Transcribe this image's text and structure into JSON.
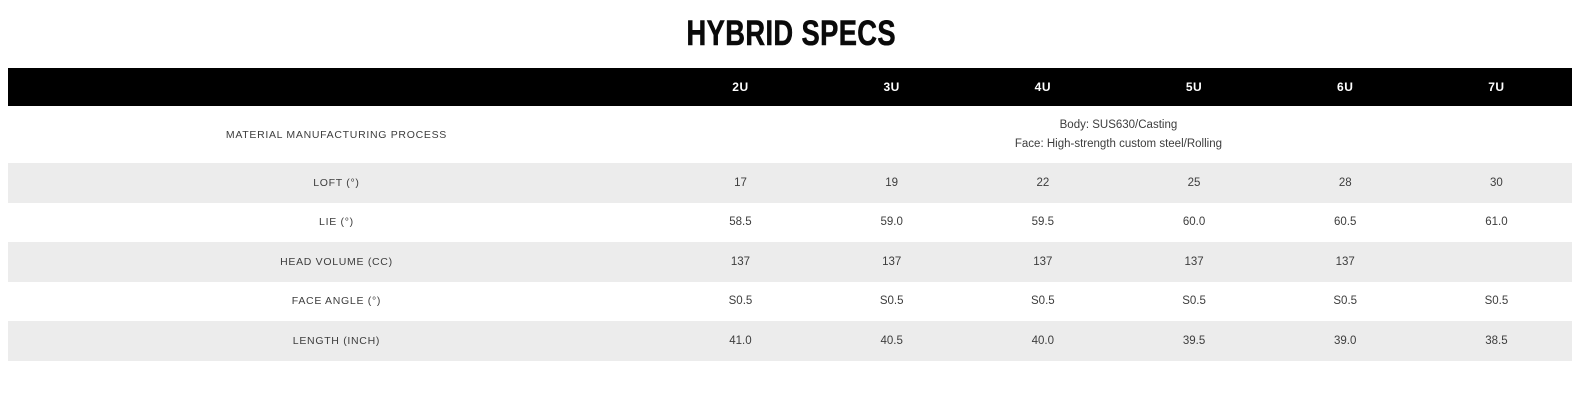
{
  "title": "HYBRID SPECS",
  "colors": {
    "header_bar": "#000000",
    "header_text": "#ffffff",
    "stripe": "#ececec",
    "text": "#3d3d3d",
    "background": "#ffffff"
  },
  "table": {
    "columns": [
      "2U",
      "3U",
      "4U",
      "5U",
      "6U",
      "7U"
    ],
    "material_row": {
      "label": "MATERIAL MANUFACTURING PROCESS",
      "value_lines": [
        "Body: SUS630/Casting",
        "Face: High-strength custom steel/Rolling"
      ]
    },
    "rows": [
      {
        "label": "LOFT (°)",
        "values": [
          "17",
          "19",
          "22",
          "25",
          "28",
          "30"
        ],
        "shaded": true
      },
      {
        "label": "LIE (°)",
        "values": [
          "58.5",
          "59.0",
          "59.5",
          "60.0",
          "60.5",
          "61.0"
        ],
        "shaded": false
      },
      {
        "label": "HEAD VOLUME (CC)",
        "values": [
          "137",
          "137",
          "137",
          "137",
          "137",
          ""
        ],
        "shaded": true
      },
      {
        "label": "FACE ANGLE (°)",
        "values": [
          "S0.5",
          "S0.5",
          "S0.5",
          "S0.5",
          "S0.5",
          "S0.5"
        ],
        "shaded": false
      },
      {
        "label": "LENGTH (INCH)",
        "values": [
          "41.0",
          "40.5",
          "40.0",
          "39.5",
          "39.0",
          "38.5"
        ],
        "shaded": true
      }
    ]
  }
}
